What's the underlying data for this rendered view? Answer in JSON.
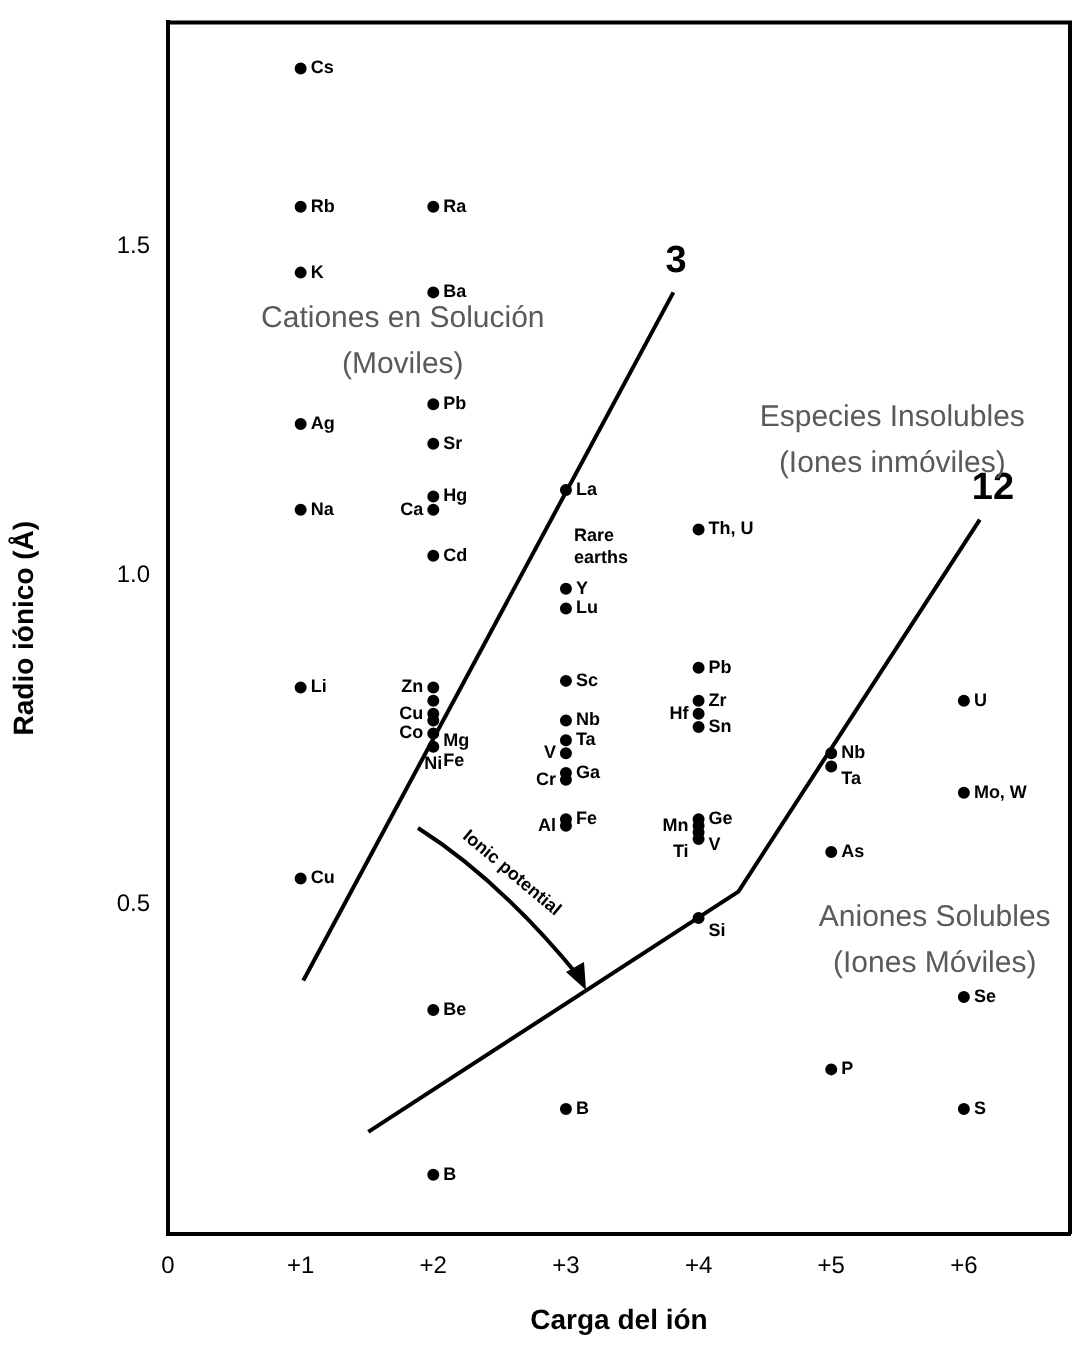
{
  "chart_data": {
    "type": "scatter",
    "xlabel": "Carga del ión",
    "ylabel": "Radio iónico (Å)",
    "xlim": [
      0,
      6.8
    ],
    "ylim": [
      0,
      1.84
    ],
    "xticks": [
      0,
      {
        "value": 1,
        "label": "+1"
      },
      {
        "value": 2,
        "label": "+2"
      },
      {
        "value": 3,
        "label": "+3"
      },
      {
        "value": 4,
        "label": "+4"
      },
      {
        "value": 5,
        "label": "+5"
      },
      {
        "value": 6,
        "label": "+6"
      }
    ],
    "yticks": [
      0.5,
      {
        "value": 1,
        "label": "1.0"
      },
      1.5
    ],
    "grid": false,
    "legend": false,
    "marker": "circle",
    "series": [
      {
        "color": "#000000",
        "x": [
          1,
          1,
          1,
          1,
          1,
          1,
          1,
          2,
          2,
          2,
          2,
          2,
          2,
          2,
          2,
          2,
          2,
          2,
          2,
          2,
          2,
          2,
          3,
          3,
          3,
          3,
          3,
          3,
          3,
          3,
          3,
          3,
          3,
          3,
          4,
          4,
          4,
          4,
          4,
          4,
          4,
          4,
          4,
          4,
          5,
          5,
          5,
          5,
          6,
          6,
          6,
          6
        ],
        "values": [
          1.77,
          1.56,
          1.46,
          1.23,
          1.1,
          0.83,
          0.54,
          1.56,
          1.43,
          1.26,
          1.2,
          1.12,
          1.1,
          1.03,
          0.83,
          0.81,
          0.79,
          0.78,
          0.76,
          0.74,
          0.34,
          0.09,
          1.13,
          0.98,
          0.95,
          0.84,
          0.78,
          0.75,
          0.73,
          0.7,
          0.69,
          0.63,
          0.62,
          0.19,
          1.07,
          0.86,
          0.81,
          0.79,
          0.77,
          0.63,
          0.62,
          0.61,
          0.6,
          0.48,
          0.73,
          0.71,
          0.58,
          0.25,
          0.81,
          0.67,
          0.36,
          0.19
        ]
      },
      {
        "type": "line",
        "name": "3",
        "marker": "none",
        "color": "#000000",
        "x": [
          1.02,
          3.81
        ],
        "values": [
          0.385,
          1.43
        ]
      },
      {
        "type": "line",
        "name": "12",
        "marker": "none",
        "color": "#000000",
        "x": [
          1.51,
          4.3,
          6.12
        ],
        "values": [
          0.155,
          0.52,
          1.085
        ]
      }
    ],
    "annotations": [
      "Cationes en Solución",
      "(Moviles)",
      "Especies Insolubles",
      "(Iones inmóviles)",
      "Aniones Solubles",
      "(Iones Móviles)",
      "Rare earths",
      "Ionic potential",
      {
        "text": "Cs",
        "x": 1,
        "y": 1.77
      },
      {
        "text": "Rb",
        "x": 1,
        "y": 1.56
      },
      {
        "text": "K",
        "x": 1,
        "y": 1.46
      },
      {
        "text": "Ag",
        "x": 1,
        "y": 1.23
      },
      {
        "text": "Na",
        "x": 1,
        "y": 1.1
      },
      {
        "text": "Li",
        "x": 1,
        "y": 0.83
      },
      {
        "text": "Cu",
        "x": 1,
        "y": 0.54
      },
      {
        "text": "Ra",
        "x": 2,
        "y": 1.56
      },
      {
        "text": "Ba",
        "x": 2,
        "y": 1.43
      },
      {
        "text": "Pb",
        "x": 2,
        "y": 1.26
      },
      {
        "text": "Sr",
        "x": 2,
        "y": 1.2
      },
      {
        "text": "Hg",
        "x": 2,
        "y": 1.12
      },
      {
        "text": "Ca",
        "x": 2,
        "y": 1.1
      },
      {
        "text": "Cd",
        "x": 2,
        "y": 1.03
      },
      {
        "text": "Zn",
        "x": 2,
        "y": 0.83
      },
      {
        "text": "Cu",
        "x": 2,
        "y": 0.81
      },
      {
        "text": "Mg",
        "x": 2,
        "y": 0.79
      },
      {
        "text": "Co",
        "x": 2,
        "y": 0.78
      },
      {
        "text": "Fe",
        "x": 2,
        "y": 0.76
      },
      {
        "text": "Ni",
        "x": 2,
        "y": 0.74
      },
      {
        "text": "Be",
        "x": 2,
        "y": 0.34
      },
      {
        "text": "B",
        "x": 2,
        "y": 0.09
      },
      {
        "text": "La",
        "x": 3,
        "y": 1.13
      },
      {
        "text": "Y",
        "x": 3,
        "y": 0.98
      },
      {
        "text": "Lu",
        "x": 3,
        "y": 0.95
      },
      {
        "text": "Sc",
        "x": 3,
        "y": 0.84
      },
      {
        "text": "Nb",
        "x": 3,
        "y": 0.78
      },
      {
        "text": "Ta",
        "x": 3,
        "y": 0.75
      },
      {
        "text": "V",
        "x": 3,
        "y": 0.73
      },
      {
        "text": "Ga",
        "x": 3,
        "y": 0.7
      },
      {
        "text": "Cr",
        "x": 3,
        "y": 0.69
      },
      {
        "text": "Fe",
        "x": 3,
        "y": 0.63
      },
      {
        "text": "Al",
        "x": 3,
        "y": 0.62
      },
      {
        "text": "B",
        "x": 3,
        "y": 0.19
      },
      {
        "text": "Th, U",
        "x": 4,
        "y": 1.07
      },
      {
        "text": "Pb",
        "x": 4,
        "y": 0.86
      },
      {
        "text": "Zr",
        "x": 4,
        "y": 0.81
      },
      {
        "text": "Hf",
        "x": 4,
        "y": 0.79
      },
      {
        "text": "Sn",
        "x": 4,
        "y": 0.77
      },
      {
        "text": "Ge",
        "x": 4,
        "y": 0.63
      },
      {
        "text": "Mn",
        "x": 4,
        "y": 0.62
      },
      {
        "text": "V",
        "x": 4,
        "y": 0.61
      },
      {
        "text": "Ti",
        "x": 4,
        "y": 0.6
      },
      {
        "text": "Si",
        "x": 4,
        "y": 0.48
      },
      {
        "text": "Nb",
        "x": 5,
        "y": 0.73
      },
      {
        "text": "Ta",
        "x": 5,
        "y": 0.71
      },
      {
        "text": "As",
        "x": 5,
        "y": 0.58
      },
      {
        "text": "P",
        "x": 5,
        "y": 0.25
      },
      {
        "text": "U",
        "x": 6,
        "y": 0.81
      },
      {
        "text": "Mo, W",
        "x": 6,
        "y": 0.67
      },
      {
        "text": "Se",
        "x": 6,
        "y": 0.36
      },
      {
        "text": "S",
        "x": 6,
        "y": 0.19
      }
    ]
  }
}
